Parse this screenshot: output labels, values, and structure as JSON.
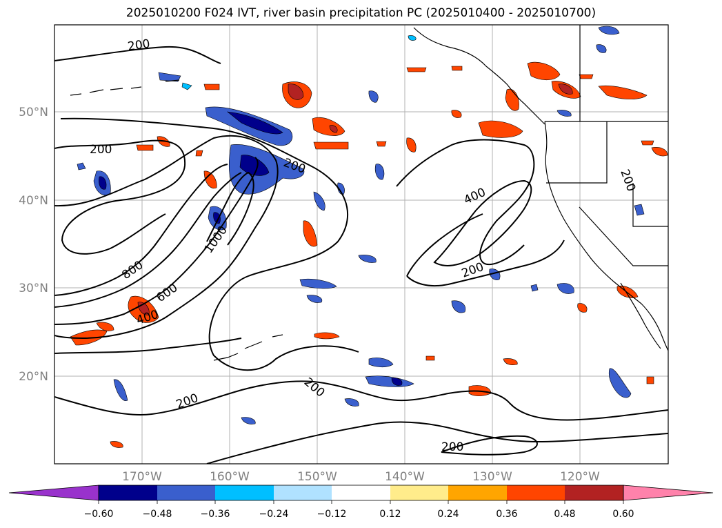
{
  "title": "2025010200 F024 IVT, river basin precipitation PC (2025010400 - 2025010700)",
  "map": {
    "lat_labels": [
      "50°N",
      "40°N",
      "30°N",
      "20°N"
    ],
    "lon_labels": [
      "170°W",
      "160°W",
      "150°W",
      "140°W",
      "130°W",
      "120°W"
    ],
    "ivt_contour_labels": [
      "200",
      "200",
      "200",
      "200",
      "200",
      "200",
      "200",
      "200",
      "400",
      "400",
      "600",
      "800",
      "1000"
    ]
  },
  "colorbar": {
    "ticks": [
      "−0.60",
      "−0.48",
      "−0.36",
      "−0.24",
      "−0.12",
      "0.12",
      "0.24",
      "0.36",
      "0.48",
      "0.60"
    ],
    "colors": [
      "#9932cc",
      "#00008b",
      "#3a5fcd",
      "#00bfff",
      "#b0e2ff",
      "#ffffff",
      "#ffec8b",
      "#ffa500",
      "#ff4500",
      "#b22222",
      "#ff82ab"
    ]
  },
  "colors": {
    "negative_strong": "#00008b",
    "negative_mid": "#3a5fcd",
    "negative_light": "#00bfff",
    "negative_pale": "#b0e2ff",
    "positive_pale": "#ffec8b",
    "positive_light": "#ffa500",
    "positive_mid": "#ff4500",
    "positive_strong": "#b22222",
    "gridline": "#b0b0b0",
    "coastline": "#000000"
  }
}
